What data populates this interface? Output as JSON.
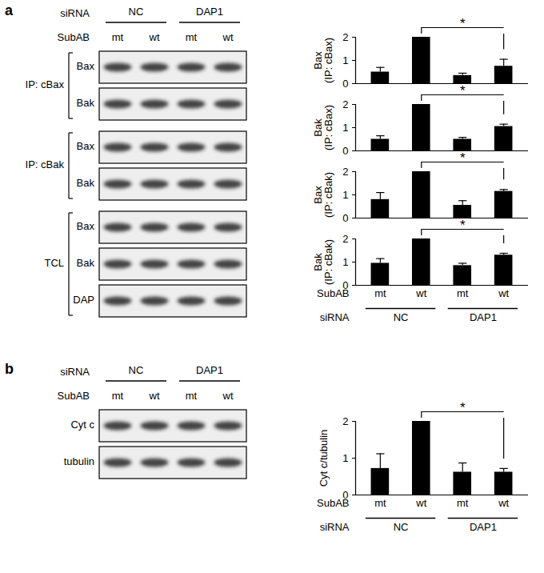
{
  "figure": {
    "panels": [
      {
        "label": "a",
        "blot": {
          "header": {
            "group_label": "siRNA",
            "groups": [
              "NC",
              "DAP1"
            ],
            "lane_label": "SubAB",
            "lanes": [
              "mt",
              "wt",
              "mt",
              "wt"
            ]
          },
          "sections": [
            {
              "label": "IP: cBax",
              "rows": [
                "Bax",
                "Bak"
              ]
            },
            {
              "label": "IP: cBak",
              "rows": [
                "Bax",
                "Bak"
              ]
            },
            {
              "label": "TCL",
              "rows": [
                "Bax",
                "Bak",
                "DAP"
              ]
            }
          ]
        }
      },
      {
        "label": "b",
        "blot": {
          "header": {
            "group_label": "siRNA",
            "groups": [
              "NC",
              "DAP1"
            ],
            "lane_label": "SubAB",
            "lanes": [
              "mt",
              "wt",
              "mt",
              "wt"
            ]
          },
          "sections": [
            {
              "rows": [
                "Cyt c",
                "tubulin"
              ]
            }
          ]
        }
      }
    ]
  },
  "chart_data": [
    {
      "type": "bar",
      "panel": "a",
      "y_label": "Bax\n(IP: cBax)",
      "categories": [
        "mt",
        "wt",
        "mt",
        "wt"
      ],
      "values": [
        0.5,
        2,
        0.35,
        0.75
      ],
      "errors": [
        0.2,
        0,
        0.1,
        0.3
      ],
      "color": "#000000",
      "ylim": [
        0,
        2
      ],
      "yticks": [
        0,
        1,
        2
      ],
      "significance": {
        "between": [
          1,
          3
        ],
        "label": "*"
      },
      "tick_labels": "y"
    },
    {
      "type": "bar",
      "panel": "a",
      "y_label": "Bak\n(IP: cBax)",
      "categories": [
        "mt",
        "wt",
        "mt",
        "wt"
      ],
      "values": [
        0.5,
        2,
        0.5,
        1.05
      ],
      "errors": [
        0.15,
        0,
        0.08,
        0.1
      ],
      "color": "#000000",
      "ylim": [
        0,
        2
      ],
      "yticks": [
        0,
        1,
        2
      ],
      "significance": {
        "between": [
          1,
          3
        ],
        "label": "*"
      },
      "tick_labels": "y"
    },
    {
      "type": "bar",
      "panel": "a",
      "y_label": "Bax\n(IP: cBak)",
      "categories": [
        "mt",
        "wt",
        "mt",
        "wt"
      ],
      "values": [
        0.8,
        2,
        0.55,
        1.15
      ],
      "errors": [
        0.3,
        0,
        0.2,
        0.08
      ],
      "color": "#000000",
      "ylim": [
        0,
        2
      ],
      "yticks": [
        0,
        1,
        2
      ],
      "significance": {
        "between": [
          1,
          3
        ],
        "label": "*"
      },
      "tick_labels": "y"
    },
    {
      "type": "bar",
      "panel": "a",
      "y_label": "Bak\n(IP: cBak)",
      "categories": [
        "mt",
        "wt",
        "mt",
        "wt"
      ],
      "x_label": "SubAB",
      "group_label": "siRNA",
      "groups": [
        "NC",
        "NC",
        "DAP1",
        "DAP1"
      ],
      "values": [
        0.95,
        2,
        0.85,
        1.3
      ],
      "errors": [
        0.2,
        0,
        0.1,
        0.08
      ],
      "color": "#000000",
      "ylim": [
        0,
        2
      ],
      "yticks": [
        0,
        1,
        2
      ],
      "significance": {
        "between": [
          1,
          3
        ],
        "label": "*"
      }
    },
    {
      "type": "bar",
      "panel": "b",
      "y_label": "Cyt c/tubulin",
      "categories": [
        "mt",
        "wt",
        "mt",
        "wt"
      ],
      "x_label": "SubAB",
      "group_label": "siRNA",
      "groups": [
        "NC",
        "NC",
        "DAP1",
        "DAP1"
      ],
      "values": [
        0.72,
        2,
        0.62,
        0.62
      ],
      "errors": [
        0.4,
        0,
        0.25,
        0.1
      ],
      "color": "#000000",
      "ylim": [
        0,
        2
      ],
      "yticks": [
        0,
        1,
        2
      ],
      "significance": {
        "between": [
          1,
          3
        ],
        "label": "*"
      }
    }
  ]
}
